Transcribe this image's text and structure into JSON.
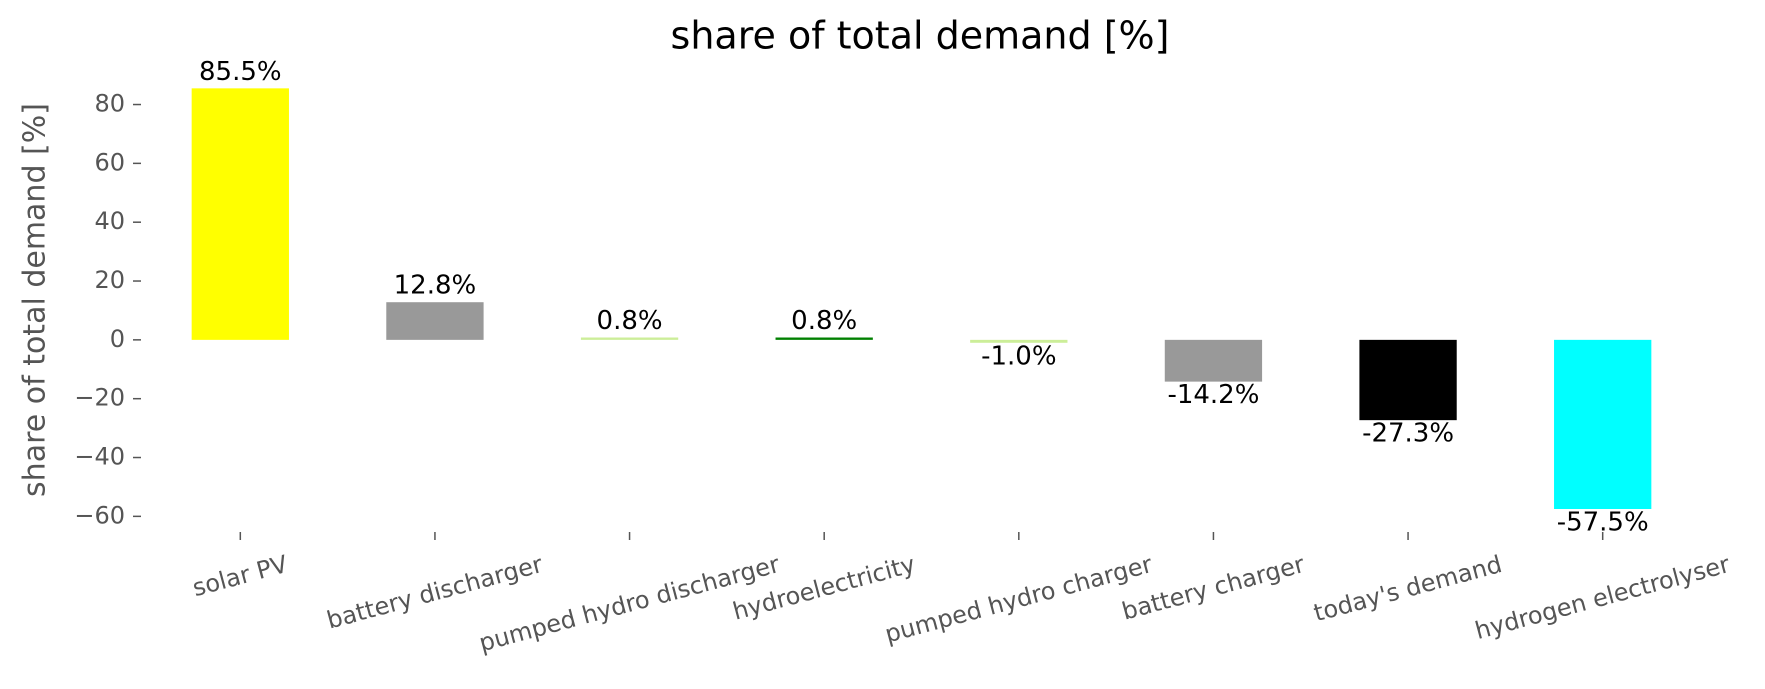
{
  "chart_data": {
    "type": "bar",
    "title": "share of total demand [%]",
    "ylabel": "share of total demand [%]",
    "categories": [
      "solar PV",
      "battery discharger",
      "pumped hydro discharger",
      "hydroelectricity",
      "pumped hydro charger",
      "battery charger",
      "today's demand",
      "hydrogen electrolyser"
    ],
    "values": [
      85.5,
      12.8,
      0.8,
      0.8,
      -1.0,
      -14.2,
      -27.3,
      -57.5
    ],
    "value_labels": [
      "85.5%",
      "12.8%",
      "0.8%",
      "0.8%",
      "-1.0%",
      "-14.2%",
      "-27.3%",
      "-57.5%"
    ],
    "colors": [
      "#ffff00",
      "#999999",
      "#ccee99",
      "#008000",
      "#ccee99",
      "#999999",
      "#000000",
      "#00ffff"
    ],
    "ylim": [
      -66,
      88
    ],
    "yticks": [
      {
        "value": -60,
        "label": "−60"
      },
      {
        "value": -40,
        "label": "−40"
      },
      {
        "value": -20,
        "label": "−20"
      },
      0,
      20,
      40,
      60,
      80
    ]
  }
}
